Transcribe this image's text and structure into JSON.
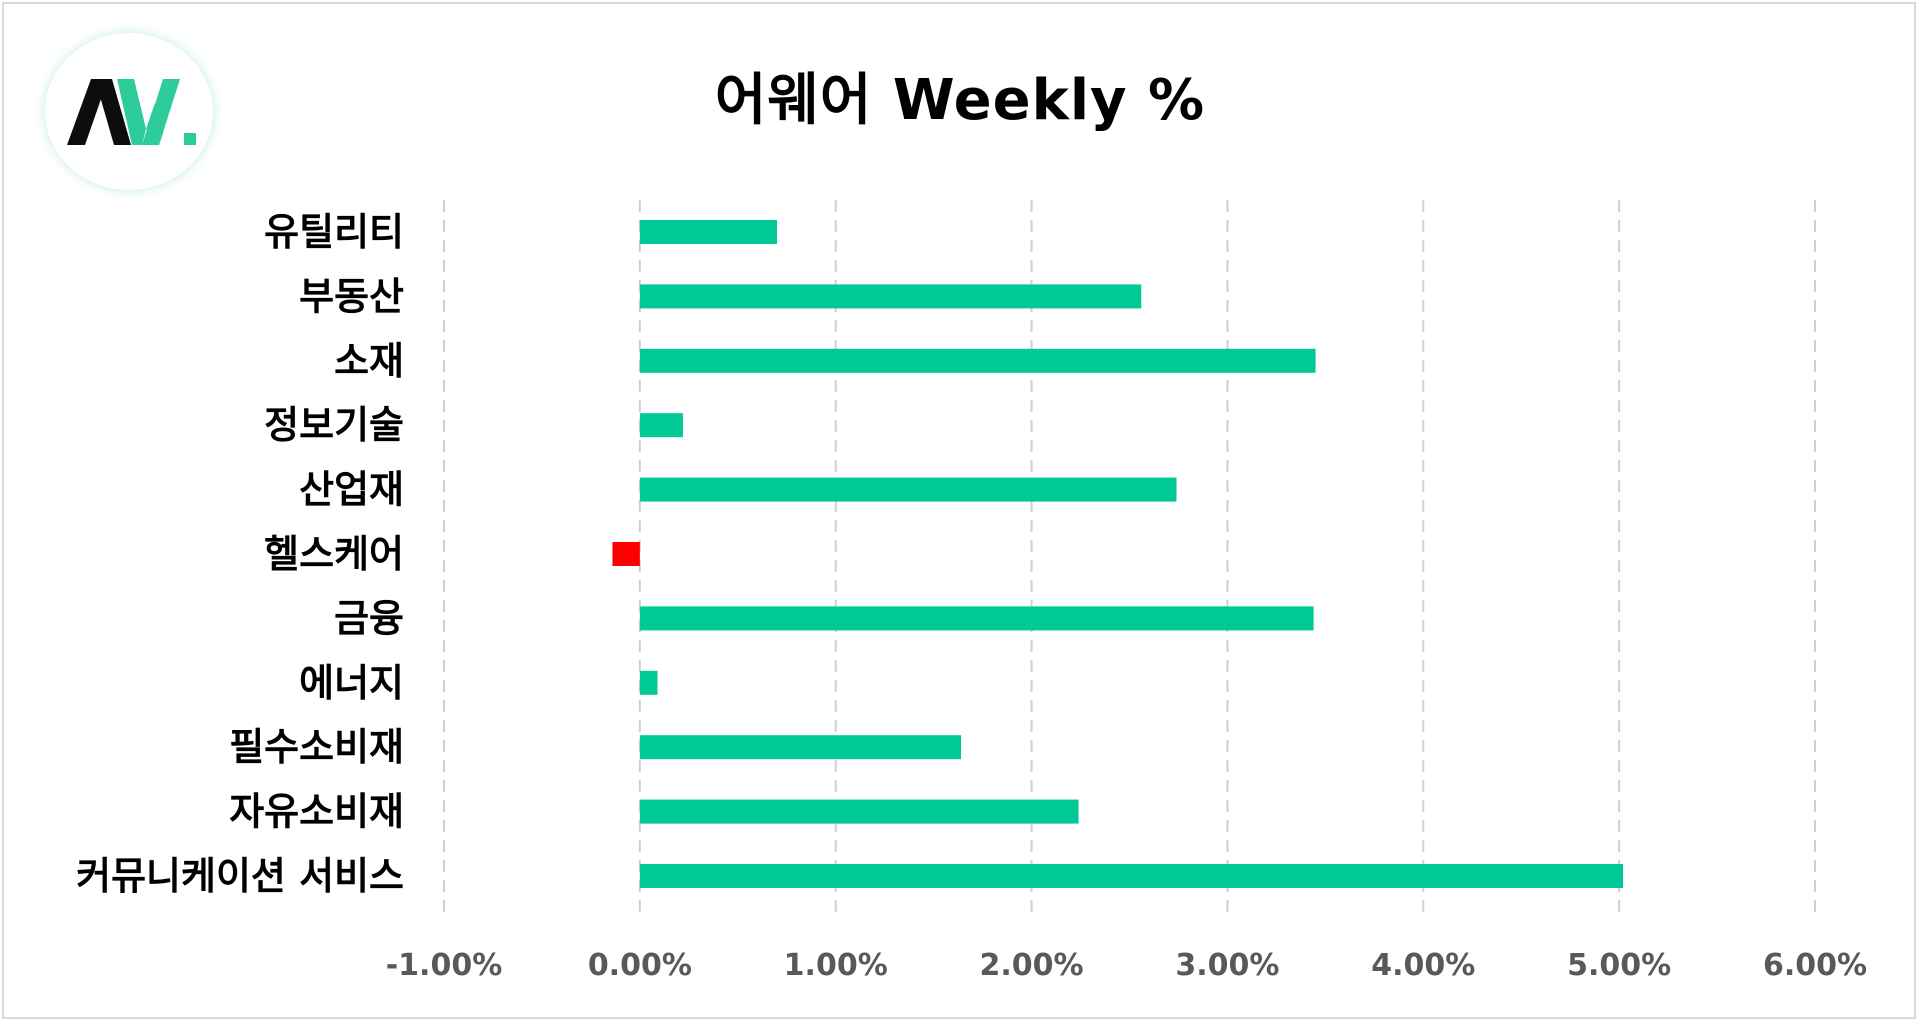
{
  "title": "어웨어 Weekly %",
  "logo": {
    "text": "AW.",
    "colors": {
      "dark": "#0d0d0d",
      "accent": "#2ecc9a"
    }
  },
  "colors": {
    "positive": "#00c896",
    "negative": "#ff0000",
    "grid": "#d0d0d0",
    "tick": "#595959"
  },
  "chart_data": {
    "type": "bar",
    "orientation": "horizontal",
    "title": "어웨어 Weekly %",
    "categories": [
      "유틸리티",
      "부동산",
      "소재",
      "정보기술",
      "산업재",
      "헬스케어",
      "금융",
      "에너지",
      "필수소비재",
      "자유소비재",
      "커뮤니케이션 서비스"
    ],
    "values": [
      0.7,
      2.56,
      3.45,
      0.22,
      2.74,
      -0.14,
      3.44,
      0.09,
      1.64,
      2.24,
      5.02
    ],
    "xlim": [
      -1,
      6
    ],
    "ticks": [
      "-1.00%",
      "0.00%",
      "1.00%",
      "2.00%",
      "3.00%",
      "4.00%",
      "5.00%",
      "6.00%"
    ],
    "grid": "vertical dashed",
    "legend": "none"
  }
}
